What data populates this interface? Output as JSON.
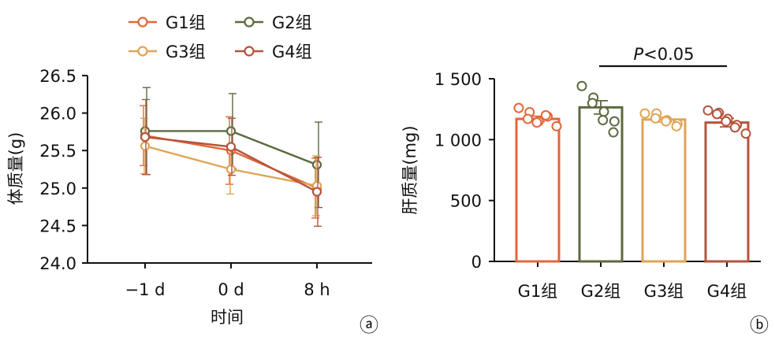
{
  "colors": {
    "G1": "#e0683a",
    "G2": "#5b6a3f",
    "G3": "#e0a457",
    "G4": "#b5533c",
    "axis": "#111111"
  },
  "chart_data": [
    {
      "type": "line",
      "panel_label": "ⓐ",
      "title": "",
      "xlabel": "时间",
      "ylabel": "体质量(g)",
      "categories": [
        "−1 d",
        "0 d",
        "8 h"
      ],
      "ylim": [
        24.0,
        26.5
      ],
      "yticks": [
        "24.0",
        "24.5",
        "25.0",
        "25.5",
        "26.0",
        "26.5"
      ],
      "ytick_values": [
        24.0,
        24.5,
        25.0,
        25.5,
        26.0,
        26.5
      ],
      "legend": {
        "placement": "top",
        "columns": 2
      },
      "series": [
        {
          "name": "G1组",
          "color_key": "G1",
          "values": [
            25.7,
            25.5,
            25.0
          ],
          "errors": [
            0.4,
            0.45,
            0.4
          ]
        },
        {
          "name": "G2组",
          "color_key": "G2",
          "values": [
            25.76,
            25.76,
            25.31
          ],
          "errors": [
            0.58,
            0.5,
            0.57
          ]
        },
        {
          "name": "G3组",
          "color_key": "G3",
          "values": [
            25.56,
            25.25,
            25.03
          ],
          "errors": [
            0.37,
            0.33,
            0.4
          ]
        },
        {
          "name": "G4组",
          "color_key": "G4",
          "values": [
            25.68,
            25.55,
            24.95
          ],
          "errors": [
            0.5,
            0.38,
            0.46
          ]
        }
      ]
    },
    {
      "type": "bar",
      "panel_label": "ⓑ",
      "title": "",
      "xlabel": "",
      "ylabel": "肝质量(mg)",
      "categories": [
        "G1组",
        "G2组",
        "G3组",
        "G4组"
      ],
      "values": [
        1170,
        1265,
        1165,
        1140
      ],
      "errors": [
        22,
        55,
        20,
        35
      ],
      "ylim": [
        0,
        1500
      ],
      "yticks": [
        "0",
        "500",
        "1 000",
        "1 500"
      ],
      "ytick_values": [
        0,
        500,
        1000,
        1500
      ],
      "color_keys": [
        "G1",
        "G2",
        "G3",
        "G4"
      ],
      "points": [
        [
          1260,
          1225,
          1170,
          1150,
          1140,
          1190,
          1200,
          1110
        ],
        [
          1440,
          1345,
          1300,
          1230,
          1160,
          1150,
          1060
        ],
        [
          1215,
          1215,
          1175,
          1160,
          1150,
          1130,
          1110
        ],
        [
          1240,
          1220,
          1210,
          1170,
          1150,
          1120,
          1100,
          1050
        ]
      ],
      "annotation": {
        "text": "P<0.05",
        "from": "G2组",
        "to": "G4组"
      }
    }
  ]
}
